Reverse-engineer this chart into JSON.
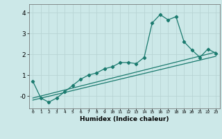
{
  "xlabel": "Humidex (Indice chaleur)",
  "ylabel": "",
  "bg_color": "#cce8e8",
  "grid_color": "#b8d4d4",
  "line_color": "#1a7a6e",
  "xlim": [
    -0.5,
    23.5
  ],
  "ylim": [
    -0.6,
    4.4
  ],
  "xticks": [
    0,
    1,
    2,
    3,
    4,
    5,
    6,
    7,
    8,
    9,
    10,
    11,
    12,
    13,
    14,
    15,
    16,
    17,
    18,
    19,
    20,
    21,
    22,
    23
  ],
  "yticks": [
    0,
    1,
    2,
    3,
    4
  ],
  "ytick_labels": [
    "-0",
    "1",
    "2",
    "3",
    "4"
  ],
  "series1_x": [
    0,
    1,
    2,
    3,
    4,
    5,
    6,
    7,
    8,
    9,
    10,
    11,
    12,
    13,
    14,
    15,
    16,
    17,
    18,
    19,
    20,
    21,
    22,
    23
  ],
  "series1_y": [
    0.7,
    -0.1,
    -0.3,
    -0.1,
    0.2,
    0.5,
    0.8,
    1.0,
    1.1,
    1.3,
    1.4,
    1.6,
    1.6,
    1.55,
    1.85,
    3.5,
    3.9,
    3.65,
    3.8,
    2.6,
    2.2,
    1.85,
    2.25,
    2.05
  ],
  "series2_x": [
    0,
    23
  ],
  "series2_y": [
    -0.1,
    2.1
  ],
  "series3_x": [
    0,
    23
  ],
  "series3_y": [
    -0.2,
    1.9
  ]
}
